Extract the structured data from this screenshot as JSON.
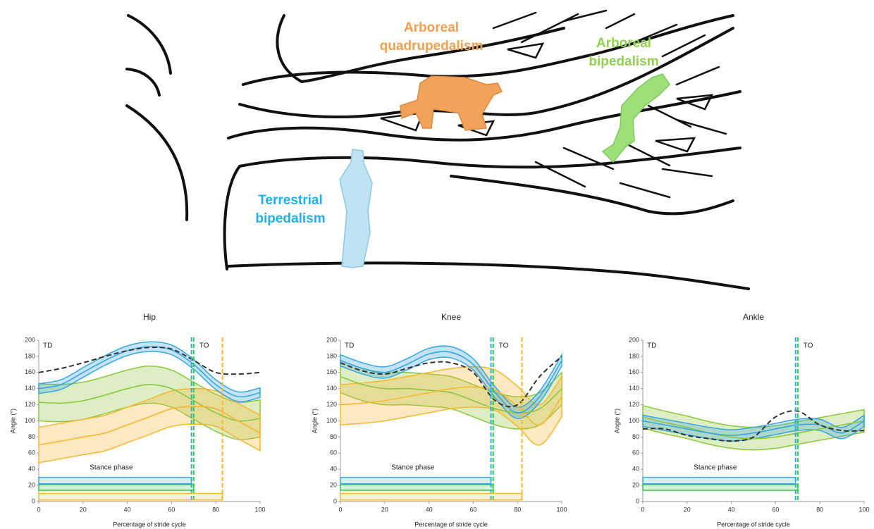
{
  "illustration": {
    "labels": [
      {
        "lines": [
          "Arboreal",
          "quadrupedalism"
        ],
        "color": "#f0a050"
      },
      {
        "lines": [
          "Arboreal",
          "bipedalism"
        ],
        "color": "#92d050"
      },
      {
        "lines": [
          "Terrestrial",
          "bipedalism"
        ],
        "color": "#22b0e6"
      }
    ]
  },
  "chart_data": [
    {
      "type": "line",
      "title": "Hip",
      "xlabel": "Percentage of stride cycle",
      "ylabel": "Angle (°)",
      "x": [
        0,
        10,
        20,
        30,
        40,
        50,
        60,
        70,
        80,
        90,
        100
      ],
      "xlim": [
        0,
        100
      ],
      "xticks": [
        0,
        20,
        40,
        60,
        80,
        100
      ],
      "ylim": [
        0,
        200
      ],
      "yticks": [
        0,
        20,
        40,
        60,
        80,
        100,
        120,
        140,
        160,
        180,
        200
      ],
      "annotations": {
        "start": "TD",
        "end": "TO",
        "phase": "Stance phase"
      },
      "series": [
        {
          "color": "#8dc63f",
          "values": [
            123,
            122,
            125,
            132,
            140,
            145,
            140,
            125,
            110,
            100,
            103
          ],
          "lower": [
            100,
            99,
            102,
            109,
            117,
            122,
            117,
            102,
            87,
            77,
            80
          ],
          "upper": [
            146,
            145,
            148,
            155,
            163,
            168,
            163,
            148,
            133,
            123,
            126
          ]
        },
        {
          "color": "#f5b731",
          "values": [
            70,
            75,
            80,
            85,
            95,
            105,
            115,
            118,
            115,
            100,
            85
          ],
          "lower": [
            48,
            53,
            58,
            63,
            73,
            83,
            93,
            96,
            93,
            78,
            63
          ],
          "upper": [
            92,
            97,
            102,
            107,
            117,
            127,
            137,
            140,
            137,
            122,
            107
          ]
        },
        {
          "color": "#3aa6dd",
          "values": [
            140,
            145,
            160,
            175,
            187,
            192,
            188,
            170,
            145,
            130,
            135
          ],
          "lower": [
            134,
            139,
            154,
            169,
            181,
            186,
            182,
            164,
            139,
            124,
            129
          ],
          "upper": [
            146,
            151,
            166,
            181,
            193,
            198,
            194,
            176,
            151,
            136,
            141
          ]
        },
        {
          "color": "#333333",
          "dashed": true,
          "values": [
            160,
            165,
            172,
            180,
            187,
            191,
            189,
            175,
            160,
            158,
            160
          ]
        }
      ],
      "markers": [
        {
          "x": 69,
          "color": "#3aa6dd"
        },
        {
          "x": 70,
          "color": "#2ec84a"
        },
        {
          "x": 83,
          "color": "#f5b731"
        }
      ],
      "stance_bars": [
        {
          "start": 0,
          "end": 69,
          "low": 22,
          "high": 30,
          "color": "#3aa6dd"
        },
        {
          "start": 0,
          "end": 70,
          "low": 14,
          "high": 21,
          "color": "#2ec84a"
        },
        {
          "start": 0,
          "end": 83,
          "low": 2,
          "high": 10,
          "color": "#f5b731"
        }
      ]
    },
    {
      "type": "line",
      "title": "Knee",
      "xlabel": "Percentage of stride cycle",
      "ylabel": "Angle (°)",
      "x": [
        0,
        10,
        20,
        30,
        40,
        50,
        60,
        70,
        80,
        90,
        100
      ],
      "xlim": [
        0,
        100
      ],
      "xticks": [
        0,
        20,
        40,
        60,
        80,
        100
      ],
      "ylim": [
        0,
        200
      ],
      "yticks": [
        0,
        20,
        40,
        60,
        80,
        100,
        120,
        140,
        160,
        180,
        200
      ],
      "annotations": {
        "start": "TD",
        "end": "TO",
        "phase": "Stance phase"
      },
      "series": [
        {
          "color": "#8dc63f",
          "values": [
            155,
            145,
            140,
            140,
            138,
            135,
            125,
            115,
            110,
            115,
            140
          ],
          "lower": [
            135,
            125,
            120,
            120,
            118,
            115,
            105,
            95,
            90,
            95,
            120
          ],
          "upper": [
            175,
            165,
            160,
            160,
            158,
            155,
            145,
            135,
            130,
            135,
            160
          ]
        },
        {
          "color": "#f5b731",
          "values": [
            120,
            122,
            125,
            130,
            135,
            140,
            142,
            138,
            118,
            95,
            130
          ],
          "lower": [
            95,
            97,
            100,
            105,
            110,
            115,
            117,
            113,
            93,
            70,
            105
          ],
          "upper": [
            145,
            147,
            150,
            155,
            160,
            165,
            167,
            163,
            143,
            120,
            155
          ]
        },
        {
          "color": "#3aa6dd",
          "values": [
            175,
            165,
            160,
            170,
            183,
            185,
            170,
            135,
            110,
            130,
            175
          ],
          "lower": [
            168,
            158,
            153,
            163,
            176,
            178,
            163,
            128,
            103,
            123,
            168
          ],
          "upper": [
            182,
            172,
            167,
            177,
            190,
            192,
            177,
            142,
            117,
            137,
            182
          ]
        },
        {
          "color": "#333333",
          "dashed": true,
          "values": [
            172,
            162,
            158,
            165,
            172,
            172,
            160,
            125,
            120,
            155,
            180
          ]
        }
      ],
      "markers": [
        {
          "x": 68,
          "color": "#3aa6dd"
        },
        {
          "x": 69,
          "color": "#2ec84a"
        },
        {
          "x": 82,
          "color": "#f5b731"
        }
      ],
      "stance_bars": [
        {
          "start": 0,
          "end": 68,
          "low": 22,
          "high": 30,
          "color": "#3aa6dd"
        },
        {
          "start": 0,
          "end": 69,
          "low": 14,
          "high": 21,
          "color": "#2ec84a"
        },
        {
          "start": 0,
          "end": 82,
          "low": 2,
          "high": 10,
          "color": "#f5b731"
        }
      ]
    },
    {
      "type": "line",
      "title": "Ankle",
      "xlabel": "Percentage of stride cycle",
      "ylabel": "Angle (°)",
      "x": [
        0,
        10,
        20,
        30,
        40,
        50,
        60,
        70,
        80,
        90,
        100
      ],
      "xlim": [
        0,
        100
      ],
      "xticks": [
        0,
        20,
        40,
        60,
        80,
        100
      ],
      "ylim": [
        0,
        200
      ],
      "yticks": [
        0,
        20,
        40,
        60,
        80,
        100,
        120,
        140,
        160,
        180,
        200
      ],
      "annotations": {
        "start": "TD",
        "end": "TO",
        "phase": "Stance phase"
      },
      "series": [
        {
          "color": "#8dc63f",
          "values": [
            105,
            98,
            92,
            85,
            80,
            78,
            80,
            85,
            90,
            95,
            100
          ],
          "lower": [
            91,
            84,
            78,
            71,
            66,
            64,
            66,
            71,
            76,
            81,
            86
          ],
          "upper": [
            119,
            112,
            106,
            99,
            94,
            92,
            94,
            99,
            104,
            109,
            114
          ]
        },
        {
          "color": "#3aa6dd",
          "values": [
            100,
            95,
            90,
            85,
            82,
            85,
            90,
            95,
            95,
            85,
            100
          ],
          "lower": [
            93,
            88,
            83,
            78,
            75,
            78,
            83,
            88,
            88,
            78,
            93
          ],
          "upper": [
            107,
            102,
            97,
            92,
            89,
            92,
            97,
            102,
            102,
            92,
            107
          ]
        },
        {
          "color": "#333333",
          "dashed": true,
          "values": [
            90,
            90,
            82,
            78,
            75,
            80,
            105,
            112,
            95,
            88,
            88
          ]
        }
      ],
      "markers": [
        {
          "x": 69,
          "color": "#3aa6dd"
        },
        {
          "x": 70,
          "color": "#2ec84a"
        }
      ],
      "stance_bars": [
        {
          "start": 0,
          "end": 69,
          "low": 22,
          "high": 30,
          "color": "#3aa6dd"
        },
        {
          "start": 0,
          "end": 70,
          "low": 14,
          "high": 21,
          "color": "#2ec84a"
        }
      ]
    }
  ]
}
